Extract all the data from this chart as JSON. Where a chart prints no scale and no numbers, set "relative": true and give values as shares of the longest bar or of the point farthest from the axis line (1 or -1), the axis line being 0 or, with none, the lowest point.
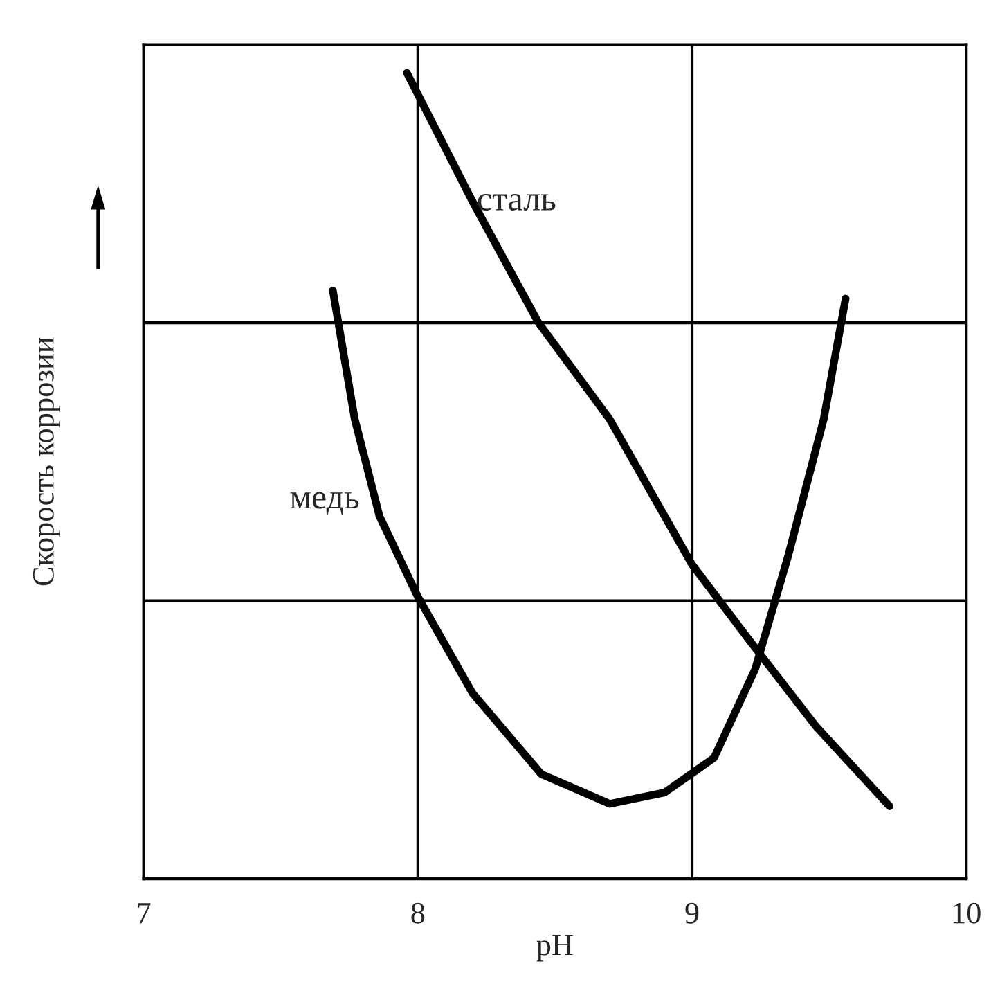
{
  "chart_data": {
    "type": "line",
    "relative": true,
    "xlabel": "pH",
    "ylabel": "Скорость коррозии",
    "xlim": [
      7,
      10
    ],
    "xticks": [
      7,
      8,
      9,
      10
    ],
    "grid": true,
    "marker": "none",
    "line_style": "solid",
    "series": [
      {
        "name": "сталь",
        "color": "#000000",
        "x": [
          7.96,
          8.2,
          8.44,
          8.7,
          9.0,
          9.2,
          9.45,
          9.72
        ],
        "values": [
          1.0,
          0.84,
          0.69,
          0.57,
          0.39,
          0.3,
          0.19,
          0.09
        ]
      },
      {
        "name": "медь",
        "color": "#000000",
        "x": [
          7.69,
          7.77,
          7.86,
          8.0,
          8.2,
          8.45,
          8.7,
          8.9,
          9.08,
          9.23,
          9.35,
          9.48,
          9.56
        ],
        "values": [
          0.73,
          0.57,
          0.45,
          0.35,
          0.23,
          0.13,
          0.093,
          0.107,
          0.15,
          0.26,
          0.4,
          0.57,
          0.72
        ]
      }
    ]
  }
}
